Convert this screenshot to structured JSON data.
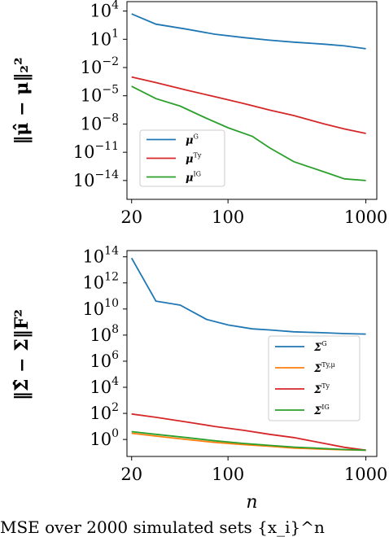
{
  "caption": "MSE over 2000 simulated sets {x_i}^n",
  "chart_data": [
    {
      "type": "line",
      "ylabel": "‖μ̂ − μ‖₂²",
      "xlabel": "",
      "xscale": "log",
      "yscale": "log",
      "xlim": [
        18.5,
        1200
      ],
      "ylim": [
        1e-16,
        100000.0
      ],
      "xticks": [
        {
          "v": 20,
          "label": "20"
        },
        {
          "v": 100,
          "label": "100"
        },
        {
          "v": 1000,
          "label": "1000"
        }
      ],
      "yticks": [
        {
          "v": 10000.0,
          "base": "10",
          "exp": "4"
        },
        {
          "v": 10.0,
          "base": "10",
          "exp": "1"
        },
        {
          "v": 0.01,
          "base": "10",
          "exp": "−2"
        },
        {
          "v": 1e-05,
          "base": "10",
          "exp": "−5"
        },
        {
          "v": 1e-08,
          "base": "10",
          "exp": "−8"
        },
        {
          "v": 1e-11,
          "base": "10",
          "exp": "−11"
        },
        {
          "v": 1e-14,
          "base": "10",
          "exp": "−14"
        }
      ],
      "legend_position": "bottom-left",
      "series": [
        {
          "name": "μ",
          "sup": "G",
          "color": "#1f77b4",
          "x": [
            20,
            30,
            50,
            80,
            130,
            200,
            300,
            500,
            700,
            1000
          ],
          "y": [
            5000,
            400,
            120,
            35,
            15,
            8,
            5,
            3,
            2,
            1
          ]
        },
        {
          "name": "μ",
          "sup": "Ty",
          "color": "#d62728",
          "x": [
            20,
            30,
            50,
            80,
            130,
            200,
            300,
            500,
            700,
            1000
          ],
          "y": [
            0.001,
            0.00025,
            4e-05,
            8e-06,
            1.5e-06,
            3e-07,
            8e-08,
            1e-08,
            3e-09,
            1e-09
          ]
        },
        {
          "name": "μ",
          "sup": "IG",
          "color": "#2ca02c",
          "x": [
            20,
            30,
            45,
            70,
            100,
            150,
            200,
            300,
            500,
            700,
            1000
          ],
          "y": [
            0.0001,
            5e-06,
            8e-07,
            4e-08,
            4e-09,
            5e-10,
            3e-11,
            1e-12,
            8e-14,
            1.5e-14,
            1e-14
          ]
        }
      ]
    },
    {
      "type": "line",
      "ylabel": "‖Σ̂ − Σ‖F²",
      "xlabel": "n",
      "xscale": "log",
      "yscale": "log",
      "xlim": [
        18.5,
        1200
      ],
      "ylim": [
        0.05,
        300000000000000.0
      ],
      "xticks": [
        {
          "v": 20,
          "label": "20"
        },
        {
          "v": 100,
          "label": "100"
        },
        {
          "v": 1000,
          "label": "1000"
        }
      ],
      "yticks": [
        {
          "v": 100000000000000.0,
          "base": "10",
          "exp": "14"
        },
        {
          "v": 1000000000000.0,
          "base": "10",
          "exp": "12"
        },
        {
          "v": 10000000000.0,
          "base": "10",
          "exp": "10"
        },
        {
          "v": 100000000.0,
          "base": "10",
          "exp": "8"
        },
        {
          "v": 1000000.0,
          "base": "10",
          "exp": "6"
        },
        {
          "v": 10000.0,
          "base": "10",
          "exp": "4"
        },
        {
          "v": 100.0,
          "base": "10",
          "exp": "2"
        },
        {
          "v": 1,
          "base": "10",
          "exp": "0"
        }
      ],
      "legend_position": "center-right",
      "series": [
        {
          "name": "Σ",
          "sup": "G",
          "color": "#1f77b4",
          "x": [
            20,
            30,
            45,
            70,
            100,
            150,
            200,
            300,
            500,
            700,
            1000
          ],
          "y": [
            80000000000000,
            40000000000,
            20000000000,
            1600000000,
            600000000,
            300000000,
            250000000,
            180000000,
            150000000,
            130000000,
            120000000
          ]
        },
        {
          "name": "Σ",
          "sup": "Ty,μ",
          "color": "#ff7f0e",
          "x": [
            20,
            30,
            50,
            80,
            130,
            200,
            300,
            500,
            700,
            1000
          ],
          "y": [
            3,
            1.8,
            1.0,
            0.6,
            0.4,
            0.3,
            0.22,
            0.18,
            0.16,
            0.15
          ]
        },
        {
          "name": "Σ",
          "sup": "Ty",
          "color": "#d62728",
          "x": [
            20,
            30,
            50,
            80,
            130,
            200,
            300,
            500,
            700,
            1000
          ],
          "y": [
            90,
            50,
            22,
            10,
            5,
            2.5,
            1.4,
            0.5,
            0.25,
            0.15
          ]
        },
        {
          "name": "Σ",
          "sup": "IG",
          "color": "#2ca02c",
          "x": [
            20,
            30,
            50,
            80,
            130,
            200,
            300,
            500,
            700,
            1000
          ],
          "y": [
            4,
            2.5,
            1.4,
            0.8,
            0.5,
            0.35,
            0.26,
            0.2,
            0.17,
            0.15
          ]
        }
      ]
    }
  ]
}
